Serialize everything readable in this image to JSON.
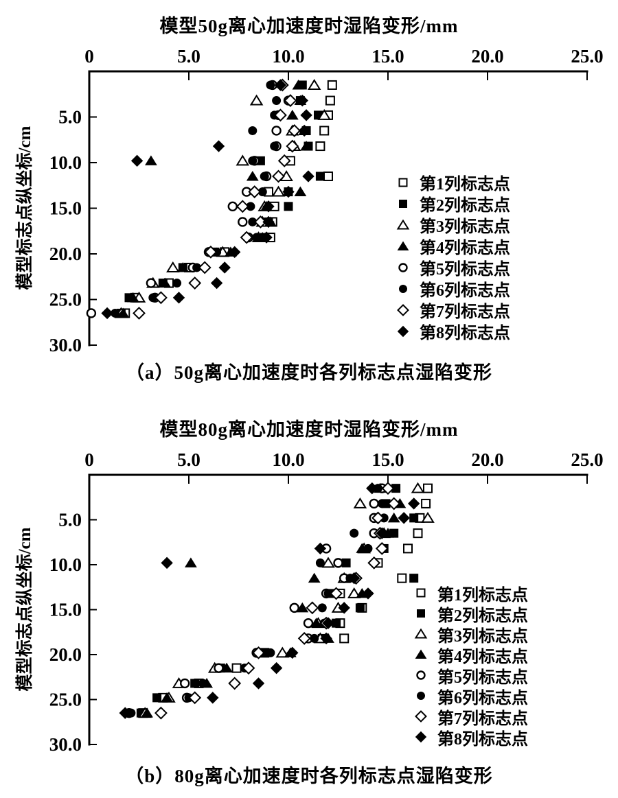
{
  "figure": {
    "background_color": "#ffffff",
    "foreground_color": "#000000",
    "description_visible_text_only": true
  },
  "legend": {
    "position": "right-inside-plot",
    "entries": [
      {
        "label": "第1列标志点",
        "marker": "square-open"
      },
      {
        "label": "第2列标志点",
        "marker": "square-filled"
      },
      {
        "label": "第3列标志点",
        "marker": "triangle-open"
      },
      {
        "label": "第4列标志点",
        "marker": "triangle-filled"
      },
      {
        "label": "第5列标志点",
        "marker": "circle-open"
      },
      {
        "label": "第6列标志点",
        "marker": "circle-filled"
      },
      {
        "label": "第7列标志点",
        "marker": "diamond-open"
      },
      {
        "label": "第8列标志点",
        "marker": "diamond-filled"
      }
    ]
  },
  "chart_data": [
    {
      "type": "scatter",
      "title": "模型50g离心加速度时湿陷变形/mm",
      "caption": "（a）50g离心加速度时各列标志点湿陷变形",
      "ylabel": "模型标志点纵坐标/cm",
      "xlabel": "",
      "x_axis_position": "top",
      "y_axis_inverted": true,
      "xlim": [
        0,
        25
      ],
      "ylim": [
        0,
        30
      ],
      "grid": false,
      "x_ticks": [
        "0",
        "5.0",
        "10.0",
        "15.0",
        "20.0",
        "25.0"
      ],
      "x_tick_values": [
        0,
        5,
        10,
        15,
        20,
        25
      ],
      "y_ticks": [
        "5.0",
        "10.0",
        "15.0",
        "20.0",
        "25.0",
        "30.0"
      ],
      "y_tick_values": [
        5,
        10,
        15,
        20,
        25,
        30
      ],
      "y_depths_cm": [
        1.5,
        3.2,
        4.8,
        6.5,
        8.2,
        9.8,
        11.5,
        13.2,
        14.8,
        16.5,
        18.2,
        19.8,
        21.5,
        23.2,
        24.8,
        26.5
      ],
      "series": [
        {
          "name": "第1列标志点",
          "marker": "square-open",
          "x": [
            12.2,
            12.1,
            12.0,
            11.8,
            11.6,
            10.1,
            12.0,
            9.0,
            9.3,
            9.2,
            9.1,
            6.8,
            5.0,
            4.0,
            2.3,
            1.8
          ]
        },
        {
          "name": "第2列标志点",
          "marker": "square-filled",
          "x": [
            10.7,
            10.6,
            11.5,
            10.9,
            11.0,
            8.6,
            11.6,
            10.0,
            10.0,
            9.0,
            8.8,
            6.3,
            4.7,
            3.7,
            2.0,
            1.6
          ]
        },
        {
          "name": "第3列标志点",
          "marker": "triangle-open",
          "x": [
            11.3,
            8.4,
            11.8,
            10.2,
            10.3,
            7.7,
            9.9,
            9.5,
            8.8,
            8.7,
            8.5,
            6.7,
            4.2,
            3.2,
            2.5,
            1.6
          ]
        },
        {
          "name": "第4列标志点",
          "marker": "triangle-filled",
          "x": [
            10.5,
            10.6,
            10.2,
            10.8,
            10.9,
            3.1,
            8.2,
            10.6,
            8.9,
            9.1,
            8.7,
            7.1,
            4.7,
            3.8,
            2.2,
            1.7
          ]
        },
        {
          "name": "第5列标志点",
          "marker": "circle-open",
          "x": [
            9.2,
            10.0,
            9.5,
            9.4,
            9.4,
            8.3,
            8.9,
            7.9,
            7.2,
            7.7,
            8.0,
            6.0,
            5.2,
            3.1,
            3.3,
            0.1
          ]
        },
        {
          "name": "第6列标志点",
          "marker": "circle-filled",
          "x": [
            9.1,
            9.4,
            9.3,
            8.2,
            9.3,
            8.2,
            8.8,
            8.7,
            8.1,
            8.2,
            8.4,
            6.4,
            5.4,
            4.4,
            3.2,
            1.3
          ]
        },
        {
          "name": "第7列标志点",
          "marker": "diamond-open",
          "x": [
            9.7,
            10.1,
            9.6,
            10.3,
            10.2,
            9.8,
            9.5,
            8.3,
            7.7,
            8.6,
            7.9,
            6.1,
            5.8,
            5.3,
            3.6,
            2.5
          ]
        },
        {
          "name": "第8列标志点",
          "marker": "diamond-filled",
          "x": [
            9.6,
            10.7,
            10.9,
            10.8,
            6.5,
            2.4,
            11.0,
            10.0,
            9.0,
            9.0,
            8.9,
            7.3,
            6.8,
            6.4,
            4.5,
            0.9
          ]
        }
      ]
    },
    {
      "type": "scatter",
      "title": "模型80g离心加速度时湿陷变形/mm",
      "caption": "（b）80g离心加速度时各列标志点湿陷变形",
      "ylabel": "模型标志点纵坐标/cm",
      "xlabel": "",
      "x_axis_position": "top",
      "y_axis_inverted": true,
      "xlim": [
        0,
        25
      ],
      "ylim": [
        0,
        30
      ],
      "grid": false,
      "x_ticks": [
        "0",
        "5.0",
        "10.0",
        "15.0",
        "20.0",
        "25.0"
      ],
      "x_tick_values": [
        0,
        5,
        10,
        15,
        20,
        25
      ],
      "y_ticks": [
        "5.0",
        "10.0",
        "15.0",
        "20.0",
        "25.0",
        "30.0"
      ],
      "y_tick_values": [
        5,
        10,
        15,
        20,
        25,
        30
      ],
      "y_depths_cm": [
        1.5,
        3.2,
        4.8,
        6.5,
        8.2,
        9.8,
        11.5,
        13.2,
        14.8,
        16.5,
        18.2,
        19.8,
        21.5,
        23.2,
        24.8,
        26.5
      ],
      "series": [
        {
          "name": "第1列标志点",
          "marker": "square-open",
          "x": [
            17.0,
            16.9,
            16.6,
            16.5,
            16.0,
            14.5,
            15.7,
            12.6,
            13.7,
            12.6,
            12.8,
            8.8,
            7.4,
            5.5,
            3.7,
            2.7
          ]
        },
        {
          "name": "第2列标志点",
          "marker": "square-filled",
          "x": [
            15.4,
            14.9,
            16.3,
            15.3,
            14.8,
            12.9,
            16.3,
            12.2,
            13.6,
            12.4,
            11.7,
            8.8,
            6.6,
            5.3,
            3.4,
            2.6
          ]
        },
        {
          "name": "第3列标志点",
          "marker": "triangle-open",
          "x": [
            16.5,
            13.6,
            17.0,
            14.8,
            13.8,
            12.0,
            12.8,
            13.3,
            12.5,
            11.5,
            11.6,
            9.7,
            6.3,
            4.5,
            4.0,
            2.8
          ]
        },
        {
          "name": "第4列标志点",
          "marker": "triangle-filled",
          "x": [
            14.6,
            15.6,
            15.3,
            15.0,
            13.7,
            5.1,
            11.3,
            13.7,
            10.7,
            11.4,
            12.0,
            10.1,
            6.9,
            5.9,
            3.9,
            2.9
          ]
        },
        {
          "name": "第5列标志点",
          "marker": "circle-open",
          "x": [
            14.7,
            14.3,
            14.3,
            14.3,
            11.9,
            12.5,
            12.8,
            11.9,
            10.3,
            11.0,
            11.0,
            8.4,
            6.5,
            4.8,
            4.9,
            2.0
          ]
        },
        {
          "name": "第6列标志点",
          "marker": "circle-filled",
          "x": [
            14.5,
            14.7,
            14.8,
            13.3,
            14.0,
            11.6,
            13.1,
            12.0,
            11.7,
            11.8,
            11.3,
            9.1,
            7.8,
            5.7,
            5.0,
            2.1
          ]
        },
        {
          "name": "第7列标志点",
          "marker": "diamond-open",
          "x": [
            15.0,
            15.3,
            14.5,
            14.6,
            14.7,
            14.3,
            13.4,
            12.4,
            11.2,
            11.9,
            10.8,
            8.5,
            8.0,
            7.3,
            5.3,
            3.6
          ]
        },
        {
          "name": "第8列标志点",
          "marker": "diamond-filled",
          "x": [
            14.2,
            16.3,
            15.8,
            14.7,
            11.6,
            3.9,
            13.3,
            14.0,
            12.8,
            12.0,
            11.9,
            10.2,
            9.4,
            8.5,
            6.2,
            1.8
          ]
        }
      ]
    }
  ]
}
